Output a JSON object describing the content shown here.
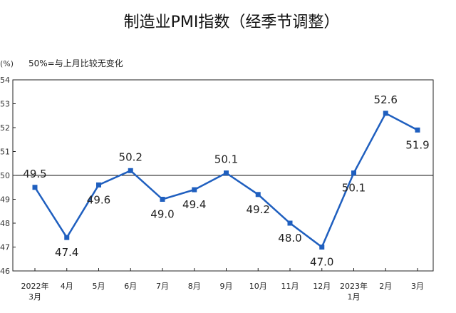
{
  "chart_data": {
    "type": "line",
    "title": "制造业PMI指数（经季节调整）",
    "unit": "(%)",
    "note": "50%=与上月比较无变化",
    "ylim": [
      46,
      54
    ],
    "yticks": [
      "46",
      "47",
      "48",
      "49",
      "50",
      "51",
      "52",
      "53",
      "54"
    ],
    "reference_line": 50,
    "grid": false,
    "x": [
      [
        "2022年",
        "3月"
      ],
      [
        "4月"
      ],
      [
        "5月"
      ],
      [
        "6月"
      ],
      [
        "7月"
      ],
      [
        "8月"
      ],
      [
        "9月"
      ],
      [
        "10月"
      ],
      [
        "11月"
      ],
      [
        "12月"
      ],
      [
        "2023年",
        "1月"
      ],
      [
        "2月"
      ],
      [
        "3月"
      ]
    ],
    "series": [
      {
        "values": [
          49.5,
          47.4,
          49.6,
          50.2,
          49.0,
          49.4,
          50.1,
          49.2,
          48.0,
          47.0,
          50.1,
          52.6,
          51.9
        ],
        "labels": [
          "49.5",
          "47.4",
          "49.6",
          "50.2",
          "49.0",
          "49.4",
          "50.1",
          "49.2",
          "48.0",
          "47.0",
          "50.1",
          "52.6",
          "51.9"
        ],
        "color": "#1f5fbf"
      }
    ]
  }
}
